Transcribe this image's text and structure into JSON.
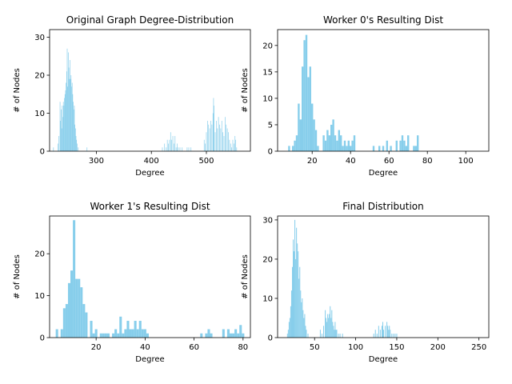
{
  "chart_data": [
    {
      "type": "bar",
      "title": "Original Graph Degree-Distribution",
      "xlabel": "Degree",
      "ylabel": "# of Nodes",
      "xlim": [
        215,
        580
      ],
      "ylim": [
        0,
        32
      ],
      "xticks": [
        300,
        400,
        500
      ],
      "yticks": [
        0,
        10,
        20,
        30
      ],
      "color": "#87ceeb",
      "bin_width": 1,
      "bins": [
        [
          222,
          1
        ],
        [
          230,
          2
        ],
        [
          232,
          4
        ],
        [
          234,
          13
        ],
        [
          235,
          8
        ],
        [
          236,
          11
        ],
        [
          237,
          6
        ],
        [
          238,
          12
        ],
        [
          239,
          9
        ],
        [
          240,
          13
        ],
        [
          241,
          12
        ],
        [
          242,
          14
        ],
        [
          243,
          15
        ],
        [
          244,
          16
        ],
        [
          245,
          18
        ],
        [
          246,
          21
        ],
        [
          247,
          27
        ],
        [
          248,
          17
        ],
        [
          249,
          26
        ],
        [
          250,
          22
        ],
        [
          251,
          19
        ],
        [
          252,
          24
        ],
        [
          253,
          19
        ],
        [
          254,
          20
        ],
        [
          255,
          17
        ],
        [
          256,
          18
        ],
        [
          257,
          15
        ],
        [
          258,
          13
        ],
        [
          259,
          11
        ],
        [
          260,
          12
        ],
        [
          261,
          7
        ],
        [
          262,
          6
        ],
        [
          263,
          4
        ],
        [
          264,
          3
        ],
        [
          265,
          2
        ],
        [
          267,
          1
        ],
        [
          283,
          1
        ],
        [
          420,
          1
        ],
        [
          424,
          2
        ],
        [
          427,
          1
        ],
        [
          429,
          3
        ],
        [
          431,
          2
        ],
        [
          433,
          3
        ],
        [
          435,
          5
        ],
        [
          437,
          3
        ],
        [
          439,
          4
        ],
        [
          441,
          2
        ],
        [
          443,
          4
        ],
        [
          445,
          1
        ],
        [
          447,
          2
        ],
        [
          449,
          1
        ],
        [
          452,
          1
        ],
        [
          456,
          1
        ],
        [
          465,
          1
        ],
        [
          468,
          1
        ],
        [
          472,
          1
        ],
        [
          496,
          3
        ],
        [
          498,
          2
        ],
        [
          500,
          5
        ],
        [
          502,
          8
        ],
        [
          504,
          7
        ],
        [
          506,
          6
        ],
        [
          508,
          8
        ],
        [
          510,
          7
        ],
        [
          512,
          10
        ],
        [
          513,
          14
        ],
        [
          514,
          12
        ],
        [
          516,
          5
        ],
        [
          518,
          8
        ],
        [
          520,
          6
        ],
        [
          522,
          9
        ],
        [
          524,
          7
        ],
        [
          526,
          6
        ],
        [
          528,
          8
        ],
        [
          530,
          5
        ],
        [
          532,
          4
        ],
        [
          534,
          9
        ],
        [
          536,
          7
        ],
        [
          538,
          6
        ],
        [
          540,
          5
        ],
        [
          542,
          3
        ],
        [
          544,
          2
        ],
        [
          546,
          1
        ],
        [
          548,
          3
        ],
        [
          550,
          2
        ],
        [
          552,
          4
        ],
        [
          553,
          3
        ],
        [
          555,
          1
        ]
      ]
    },
    {
      "type": "bar",
      "title": "Worker 0's Resulting Dist",
      "xlabel": "Degree",
      "ylabel": "# of Nodes",
      "xlim": [
        2,
        112
      ],
      "ylim": [
        0,
        23
      ],
      "xticks": [
        20,
        40,
        60,
        80,
        100
      ],
      "yticks": [
        0,
        5,
        10,
        15,
        20
      ],
      "color": "#87ceeb",
      "bin_width": 1,
      "bins": [
        [
          8,
          1
        ],
        [
          10,
          1
        ],
        [
          11,
          2
        ],
        [
          12,
          3
        ],
        [
          13,
          9
        ],
        [
          14,
          6
        ],
        [
          15,
          16
        ],
        [
          16,
          21
        ],
        [
          17,
          22
        ],
        [
          18,
          14
        ],
        [
          19,
          16
        ],
        [
          20,
          9
        ],
        [
          21,
          6
        ],
        [
          22,
          4
        ],
        [
          23,
          1
        ],
        [
          26,
          3
        ],
        [
          27,
          2
        ],
        [
          28,
          4
        ],
        [
          29,
          3
        ],
        [
          30,
          5
        ],
        [
          31,
          6
        ],
        [
          32,
          3
        ],
        [
          33,
          2
        ],
        [
          34,
          4
        ],
        [
          35,
          3
        ],
        [
          36,
          1
        ],
        [
          37,
          2
        ],
        [
          38,
          1
        ],
        [
          39,
          2
        ],
        [
          40,
          1
        ],
        [
          41,
          2
        ],
        [
          42,
          3
        ],
        [
          52,
          1
        ],
        [
          55,
          1
        ],
        [
          57,
          1
        ],
        [
          59,
          2
        ],
        [
          61,
          1
        ],
        [
          64,
          2
        ],
        [
          66,
          2
        ],
        [
          67,
          3
        ],
        [
          68,
          2
        ],
        [
          69,
          1
        ],
        [
          70,
          3
        ],
        [
          73,
          1
        ],
        [
          74,
          1
        ],
        [
          75,
          3
        ]
      ]
    },
    {
      "type": "bar",
      "title": "Worker 1's Resulting Dist",
      "xlabel": "Degree",
      "ylabel": "# of Nodes",
      "xlim": [
        1,
        83
      ],
      "ylim": [
        0,
        29
      ],
      "xticks": [
        20,
        40,
        60,
        80
      ],
      "yticks": [
        0,
        10,
        20
      ],
      "color": "#87ceeb",
      "bin_width": 1,
      "bins": [
        [
          4,
          2
        ],
        [
          6,
          2
        ],
        [
          7,
          7
        ],
        [
          8,
          8
        ],
        [
          9,
          13
        ],
        [
          10,
          16
        ],
        [
          11,
          28
        ],
        [
          12,
          14
        ],
        [
          13,
          14
        ],
        [
          14,
          12
        ],
        [
          15,
          8
        ],
        [
          16,
          6
        ],
        [
          18,
          4
        ],
        [
          19,
          1
        ],
        [
          20,
          2
        ],
        [
          22,
          1
        ],
        [
          23,
          1
        ],
        [
          24,
          1
        ],
        [
          25,
          1
        ],
        [
          27,
          1
        ],
        [
          28,
          2
        ],
        [
          29,
          1
        ],
        [
          30,
          5
        ],
        [
          31,
          1
        ],
        [
          32,
          2
        ],
        [
          33,
          4
        ],
        [
          34,
          2
        ],
        [
          35,
          2
        ],
        [
          36,
          4
        ],
        [
          37,
          2
        ],
        [
          38,
          4
        ],
        [
          39,
          2
        ],
        [
          40,
          2
        ],
        [
          41,
          1
        ],
        [
          63,
          1
        ],
        [
          65,
          1
        ],
        [
          66,
          2
        ],
        [
          67,
          1
        ],
        [
          72,
          2
        ],
        [
          74,
          2
        ],
        [
          75,
          1
        ],
        [
          76,
          1
        ],
        [
          77,
          2
        ],
        [
          78,
          1
        ],
        [
          79,
          3
        ],
        [
          80,
          1
        ]
      ]
    },
    {
      "type": "bar",
      "title": "Final Distribution",
      "xlabel": "Degree",
      "ylabel": "# of Nodes",
      "xlim": [
        5,
        262
      ],
      "ylim": [
        0,
        31
      ],
      "xticks": [
        50,
        100,
        150,
        200,
        250
      ],
      "yticks": [
        0,
        10,
        20,
        30
      ],
      "color": "#87ceeb",
      "bin_width": 1,
      "bins": [
        [
          17,
          1
        ],
        [
          18,
          2
        ],
        [
          19,
          4
        ],
        [
          20,
          5
        ],
        [
          21,
          8
        ],
        [
          22,
          12
        ],
        [
          23,
          18
        ],
        [
          24,
          25
        ],
        [
          25,
          22
        ],
        [
          26,
          30
        ],
        [
          27,
          20
        ],
        [
          28,
          28
        ],
        [
          29,
          24
        ],
        [
          30,
          22
        ],
        [
          31,
          15
        ],
        [
          32,
          18
        ],
        [
          33,
          12
        ],
        [
          34,
          9
        ],
        [
          35,
          10
        ],
        [
          36,
          7
        ],
        [
          37,
          5
        ],
        [
          38,
          6
        ],
        [
          39,
          3
        ],
        [
          40,
          2
        ],
        [
          42,
          1
        ],
        [
          57,
          2
        ],
        [
          59,
          1
        ],
        [
          61,
          3
        ],
        [
          63,
          7
        ],
        [
          64,
          5
        ],
        [
          65,
          4
        ],
        [
          66,
          6
        ],
        [
          67,
          5
        ],
        [
          68,
          6
        ],
        [
          69,
          8
        ],
        [
          70,
          5
        ],
        [
          71,
          7
        ],
        [
          72,
          4
        ],
        [
          73,
          3
        ],
        [
          74,
          2
        ],
        [
          75,
          4
        ],
        [
          76,
          2
        ],
        [
          77,
          2
        ],
        [
          79,
          1
        ],
        [
          81,
          1
        ],
        [
          84,
          1
        ],
        [
          122,
          1
        ],
        [
          124,
          2
        ],
        [
          126,
          1
        ],
        [
          128,
          3
        ],
        [
          130,
          2
        ],
        [
          132,
          3
        ],
        [
          133,
          4
        ],
        [
          134,
          2
        ],
        [
          136,
          3
        ],
        [
          138,
          4
        ],
        [
          139,
          3
        ],
        [
          140,
          2
        ],
        [
          141,
          3
        ],
        [
          142,
          2
        ],
        [
          144,
          1
        ],
        [
          146,
          1
        ],
        [
          148,
          1
        ],
        [
          150,
          1
        ]
      ]
    }
  ]
}
